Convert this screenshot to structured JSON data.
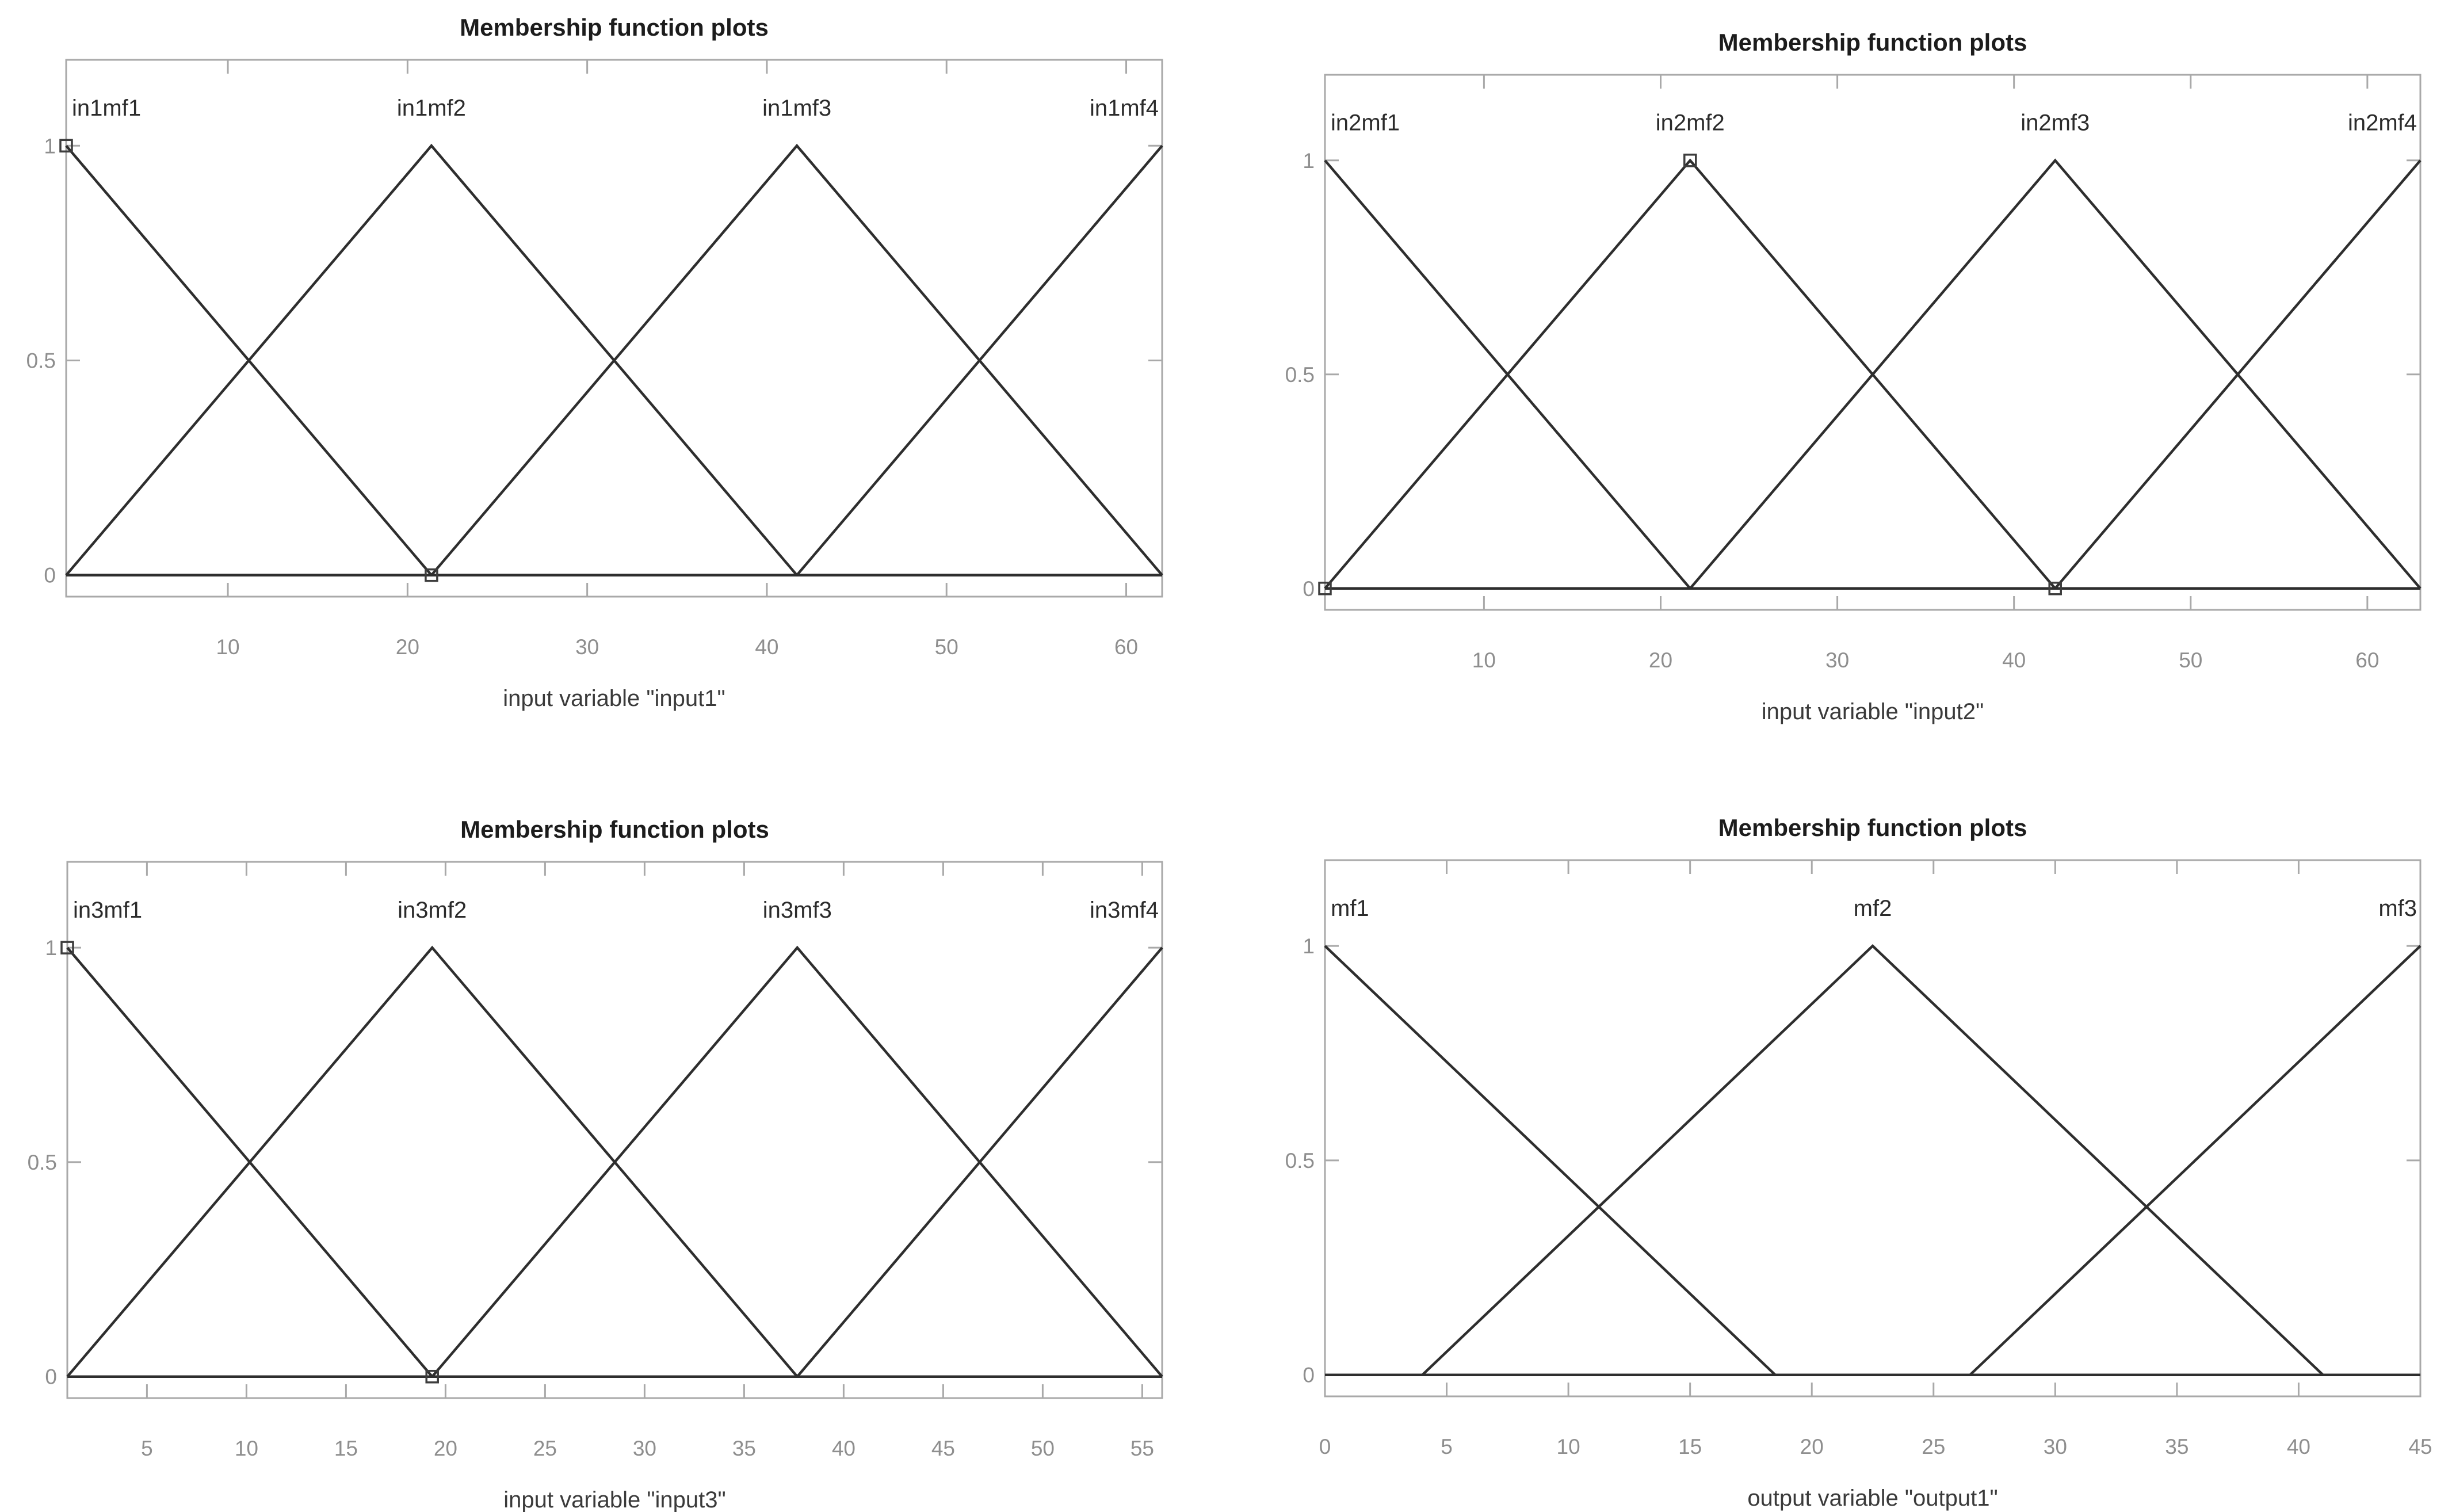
{
  "figure": {
    "background": "#ffffff",
    "description": "2x2 grid of fuzzy membership function plots"
  },
  "styles": {
    "line_color": "#2e2e2e",
    "baseline_color": "#2e2e2e",
    "box_color": "#a9a9a9",
    "tick_color": "#a9a9a9",
    "tick_label_color": "#8e8e8e",
    "axis_label_color": "#3a3a3a",
    "title_color": "#1c1c1c",
    "mf_label_color": "#2b2b2b",
    "marker_color": "#3d3d3d"
  },
  "chart_data": [
    {
      "type": "line",
      "title": "Membership function plots",
      "xlabel": "input variable \"input1\"",
      "ylabel": "",
      "xlim": [
        1,
        62
      ],
      "ylim": [
        -0.05,
        1.2
      ],
      "xticks": [
        10,
        20,
        30,
        40,
        50,
        60
      ],
      "yticks": [
        0,
        0.5,
        1
      ],
      "ytick_labels": [
        "0",
        "0.5",
        "1"
      ],
      "grid": false,
      "legend_position": "none",
      "series": [
        {
          "name": "in1mf1",
          "points": [
            [
              1,
              1
            ],
            [
              21.33,
              0
            ],
            [
              62,
              0
            ]
          ]
        },
        {
          "name": "in1mf2",
          "points": [
            [
              1,
              0
            ],
            [
              21.33,
              1
            ],
            [
              41.67,
              0
            ],
            [
              62,
              0
            ]
          ]
        },
        {
          "name": "in1mf3",
          "points": [
            [
              1,
              0
            ],
            [
              21.33,
              0
            ],
            [
              41.67,
              1
            ],
            [
              62,
              0
            ]
          ]
        },
        {
          "name": "in1mf4",
          "points": [
            [
              1,
              0
            ],
            [
              41.67,
              0
            ],
            [
              62,
              1
            ]
          ]
        }
      ],
      "mf_labels": [
        {
          "text": "in1mf1",
          "x": 1,
          "anchor": "start"
        },
        {
          "text": "in1mf2",
          "x": 21.33,
          "anchor": "middle"
        },
        {
          "text": "in1mf3",
          "x": 41.67,
          "anchor": "middle"
        },
        {
          "text": "in1mf4",
          "x": 62,
          "anchor": "end"
        }
      ],
      "markers": [
        [
          1,
          1
        ],
        [
          21.33,
          0
        ]
      ]
    },
    {
      "type": "line",
      "title": "Membership function plots",
      "xlabel": "input variable \"input2\"",
      "ylabel": "",
      "xlim": [
        1,
        63
      ],
      "ylim": [
        -0.05,
        1.2
      ],
      "xticks": [
        10,
        20,
        30,
        40,
        50,
        60
      ],
      "yticks": [
        0,
        0.5,
        1
      ],
      "ytick_labels": [
        "0",
        "0.5",
        "1"
      ],
      "grid": false,
      "legend_position": "none",
      "series": [
        {
          "name": "in2mf1",
          "points": [
            [
              1,
              1
            ],
            [
              21.67,
              0
            ],
            [
              63,
              0
            ]
          ]
        },
        {
          "name": "in2mf2",
          "points": [
            [
              1,
              0
            ],
            [
              21.67,
              1
            ],
            [
              42.33,
              0
            ],
            [
              63,
              0
            ]
          ]
        },
        {
          "name": "in2mf3",
          "points": [
            [
              1,
              0
            ],
            [
              21.67,
              0
            ],
            [
              42.33,
              1
            ],
            [
              63,
              0
            ]
          ]
        },
        {
          "name": "in2mf4",
          "points": [
            [
              1,
              0
            ],
            [
              42.33,
              0
            ],
            [
              63,
              1
            ]
          ]
        }
      ],
      "mf_labels": [
        {
          "text": "in2mf1",
          "x": 1,
          "anchor": "start"
        },
        {
          "text": "in2mf2",
          "x": 21.67,
          "anchor": "middle"
        },
        {
          "text": "in2mf3",
          "x": 42.33,
          "anchor": "middle"
        },
        {
          "text": "in2mf4",
          "x": 63,
          "anchor": "end"
        }
      ],
      "markers": [
        [
          1,
          0
        ],
        [
          21.67,
          1
        ],
        [
          42.33,
          0
        ]
      ]
    },
    {
      "type": "line",
      "title": "Membership function plots",
      "xlabel": "input variable \"input3\"",
      "ylabel": "",
      "xlim": [
        1,
        56
      ],
      "ylim": [
        -0.05,
        1.2
      ],
      "xticks": [
        5,
        10,
        15,
        20,
        25,
        30,
        35,
        40,
        45,
        50,
        55
      ],
      "yticks": [
        0,
        0.5,
        1
      ],
      "ytick_labels": [
        "0",
        "0.5",
        "1"
      ],
      "grid": false,
      "legend_position": "none",
      "series": [
        {
          "name": "in3mf1",
          "points": [
            [
              1,
              1
            ],
            [
              19.33,
              0
            ],
            [
              56,
              0
            ]
          ]
        },
        {
          "name": "in3mf2",
          "points": [
            [
              1,
              0
            ],
            [
              19.33,
              1
            ],
            [
              37.67,
              0
            ],
            [
              56,
              0
            ]
          ]
        },
        {
          "name": "in3mf3",
          "points": [
            [
              1,
              0
            ],
            [
              19.33,
              0
            ],
            [
              37.67,
              1
            ],
            [
              56,
              0
            ]
          ]
        },
        {
          "name": "in3mf4",
          "points": [
            [
              1,
              0
            ],
            [
              37.67,
              0
            ],
            [
              56,
              1
            ]
          ]
        }
      ],
      "mf_labels": [
        {
          "text": "in3mf1",
          "x": 1,
          "anchor": "start"
        },
        {
          "text": "in3mf2",
          "x": 19.33,
          "anchor": "middle"
        },
        {
          "text": "in3mf3",
          "x": 37.67,
          "anchor": "middle"
        },
        {
          "text": "in3mf4",
          "x": 56,
          "anchor": "end"
        }
      ],
      "markers": [
        [
          1,
          1
        ],
        [
          19.33,
          0
        ]
      ]
    },
    {
      "type": "line",
      "title": "Membership function plots",
      "xlabel": "output variable \"output1\"",
      "ylabel": "",
      "xlim": [
        0,
        45
      ],
      "ylim": [
        -0.05,
        1.2
      ],
      "xticks": [
        0,
        5,
        10,
        15,
        20,
        25,
        30,
        35,
        40,
        45
      ],
      "yticks": [
        0,
        0.5,
        1
      ],
      "ytick_labels": [
        "0",
        "0.5",
        "1"
      ],
      "grid": false,
      "legend_position": "none",
      "series": [
        {
          "name": "mf1",
          "points": [
            [
              0,
              1
            ],
            [
              18.5,
              0
            ],
            [
              45,
              0
            ]
          ]
        },
        {
          "name": "mf2",
          "points": [
            [
              0,
              0
            ],
            [
              4,
              0
            ],
            [
              22.5,
              1
            ],
            [
              41,
              0
            ],
            [
              45,
              0
            ]
          ]
        },
        {
          "name": "mf3",
          "points": [
            [
              0,
              0
            ],
            [
              26.5,
              0
            ],
            [
              45,
              1
            ]
          ]
        }
      ],
      "mf_labels": [
        {
          "text": "mf1",
          "x": 0,
          "anchor": "start"
        },
        {
          "text": "mf2",
          "x": 22.5,
          "anchor": "middle"
        },
        {
          "text": "mf3",
          "x": 45,
          "anchor": "end"
        }
      ],
      "markers": []
    }
  ]
}
